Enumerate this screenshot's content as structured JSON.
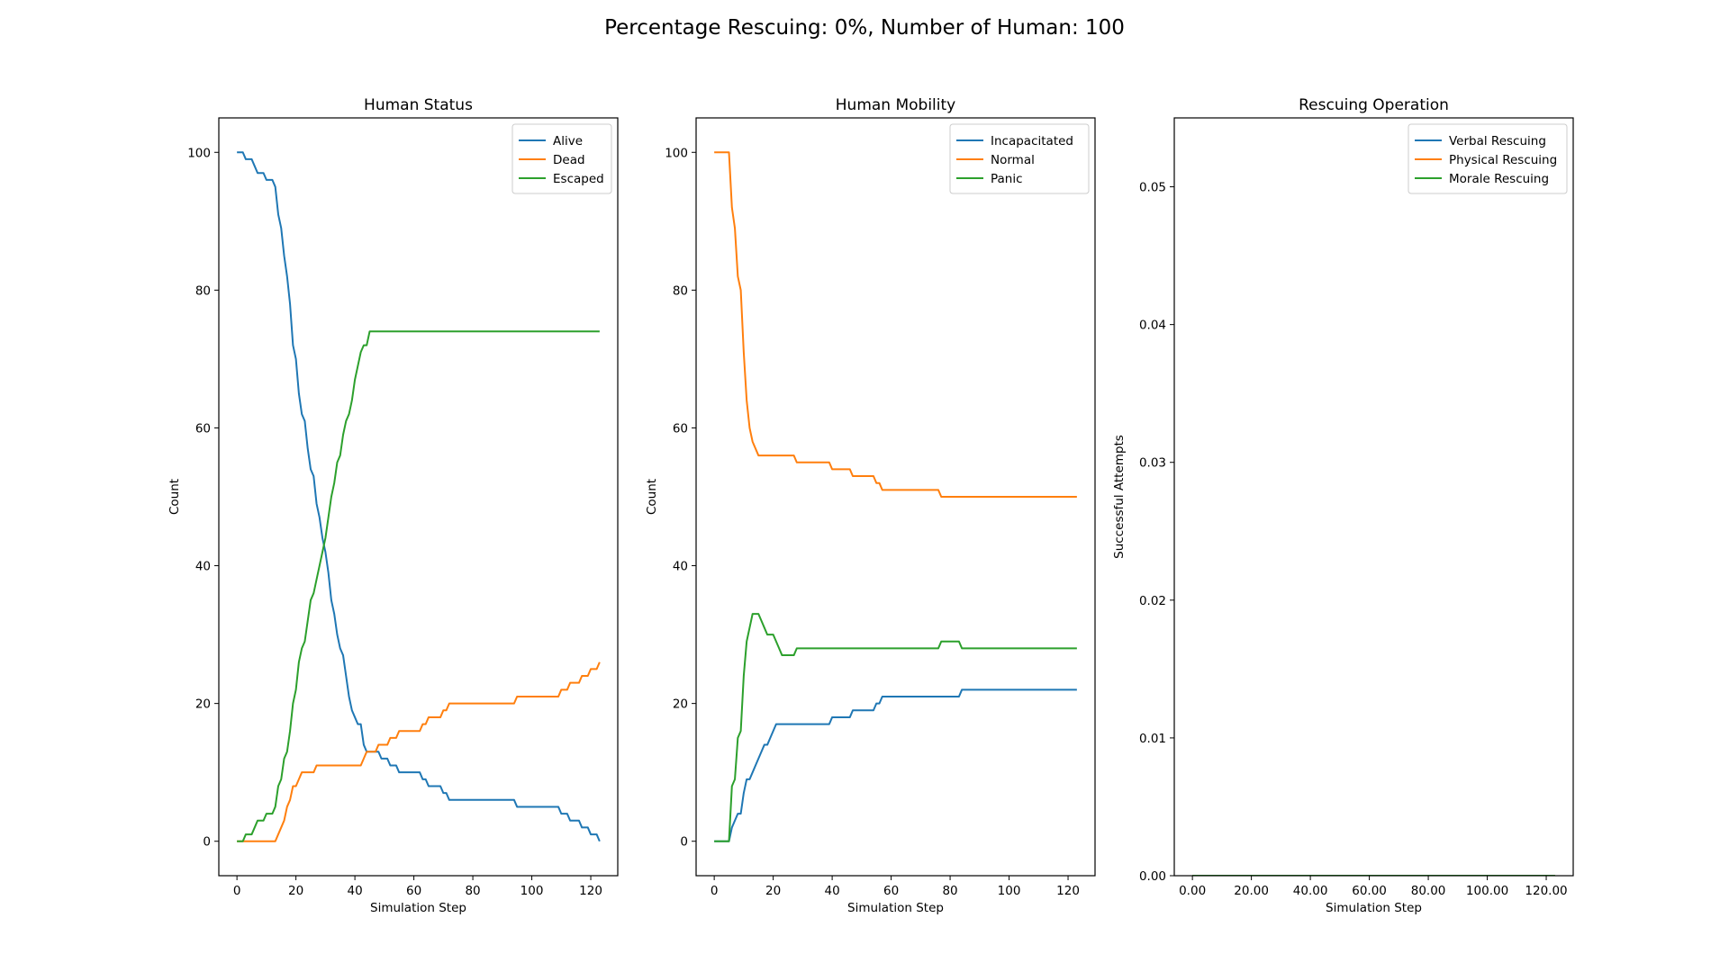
{
  "suptitle": "Percentage Rescuing: 0%, Number of Human: 100",
  "chart_data": [
    {
      "type": "line",
      "title": "Human Status",
      "xlabel": "Simulation Step",
      "ylabel": "Count",
      "xlim": [
        -6.15,
        129.15
      ],
      "ylim": [
        -5,
        105
      ],
      "xticks": [
        0,
        20,
        40,
        60,
        80,
        100,
        120
      ],
      "yticks": [
        0,
        20,
        40,
        60,
        80,
        100
      ],
      "tick_format": "int",
      "legend_position": "upper-right",
      "grid": false,
      "series": [
        {
          "name": "Alive",
          "color": "#1f77b4",
          "points": [
            [
              0,
              100
            ],
            [
              2,
              100
            ],
            [
              3,
              99
            ],
            [
              5,
              99
            ],
            [
              6,
              98
            ],
            [
              7,
              97
            ],
            [
              9,
              97
            ],
            [
              10,
              96
            ],
            [
              12,
              96
            ],
            [
              13,
              95
            ],
            [
              14,
              91
            ],
            [
              15,
              89
            ],
            [
              16,
              85
            ],
            [
              17,
              82
            ],
            [
              18,
              78
            ],
            [
              19,
              72
            ],
            [
              20,
              70
            ],
            [
              21,
              65
            ],
            [
              22,
              62
            ],
            [
              23,
              61
            ],
            [
              24,
              57
            ],
            [
              25,
              54
            ],
            [
              26,
              53
            ],
            [
              27,
              49
            ],
            [
              28,
              47
            ],
            [
              29,
              44
            ],
            [
              30,
              42
            ],
            [
              31,
              39
            ],
            [
              32,
              35
            ],
            [
              33,
              33
            ],
            [
              34,
              30
            ],
            [
              35,
              28
            ],
            [
              36,
              27
            ],
            [
              37,
              24
            ],
            [
              38,
              21
            ],
            [
              39,
              19
            ],
            [
              40,
              18
            ],
            [
              41,
              17
            ],
            [
              42,
              17
            ],
            [
              43,
              14
            ],
            [
              44,
              13
            ],
            [
              48,
              13
            ],
            [
              49,
              12
            ],
            [
              51,
              12
            ],
            [
              52,
              11
            ],
            [
              54,
              11
            ],
            [
              55,
              10
            ],
            [
              62,
              10
            ],
            [
              63,
              9
            ],
            [
              64,
              9
            ],
            [
              65,
              8
            ],
            [
              69,
              8
            ],
            [
              70,
              7
            ],
            [
              71,
              7
            ],
            [
              72,
              6
            ],
            [
              94,
              6
            ],
            [
              95,
              5
            ],
            [
              109,
              5
            ],
            [
              110,
              4
            ],
            [
              112,
              4
            ],
            [
              113,
              3
            ],
            [
              116,
              3
            ],
            [
              117,
              2
            ],
            [
              119,
              2
            ],
            [
              120,
              1
            ],
            [
              122,
              1
            ],
            [
              123,
              0
            ]
          ]
        },
        {
          "name": "Dead",
          "color": "#ff7f0e",
          "points": [
            [
              0,
              0
            ],
            [
              13,
              0
            ],
            [
              14,
              1
            ],
            [
              15,
              2
            ],
            [
              16,
              3
            ],
            [
              17,
              5
            ],
            [
              18,
              6
            ],
            [
              19,
              8
            ],
            [
              20,
              8
            ],
            [
              21,
              9
            ],
            [
              22,
              10
            ],
            [
              26,
              10
            ],
            [
              27,
              11
            ],
            [
              42,
              11
            ],
            [
              43,
              12
            ],
            [
              44,
              13
            ],
            [
              47,
              13
            ],
            [
              48,
              14
            ],
            [
              51,
              14
            ],
            [
              52,
              15
            ],
            [
              54,
              15
            ],
            [
              55,
              16
            ],
            [
              62,
              16
            ],
            [
              63,
              17
            ],
            [
              64,
              17
            ],
            [
              65,
              18
            ],
            [
              69,
              18
            ],
            [
              70,
              19
            ],
            [
              71,
              19
            ],
            [
              72,
              20
            ],
            [
              94,
              20
            ],
            [
              95,
              21
            ],
            [
              109,
              21
            ],
            [
              110,
              22
            ],
            [
              112,
              22
            ],
            [
              113,
              23
            ],
            [
              116,
              23
            ],
            [
              117,
              24
            ],
            [
              119,
              24
            ],
            [
              120,
              25
            ],
            [
              122,
              25
            ],
            [
              123,
              26
            ]
          ]
        },
        {
          "name": "Escaped",
          "color": "#2ca02c",
          "points": [
            [
              0,
              0
            ],
            [
              2,
              0
            ],
            [
              3,
              1
            ],
            [
              5,
              1
            ],
            [
              6,
              2
            ],
            [
              7,
              3
            ],
            [
              9,
              3
            ],
            [
              10,
              4
            ],
            [
              12,
              4
            ],
            [
              13,
              5
            ],
            [
              14,
              8
            ],
            [
              15,
              9
            ],
            [
              16,
              12
            ],
            [
              17,
              13
            ],
            [
              18,
              16
            ],
            [
              19,
              20
            ],
            [
              20,
              22
            ],
            [
              21,
              26
            ],
            [
              22,
              28
            ],
            [
              23,
              29
            ],
            [
              24,
              32
            ],
            [
              25,
              35
            ],
            [
              26,
              36
            ],
            [
              27,
              38
            ],
            [
              28,
              40
            ],
            [
              29,
              42
            ],
            [
              30,
              44
            ],
            [
              31,
              47
            ],
            [
              32,
              50
            ],
            [
              33,
              52
            ],
            [
              34,
              55
            ],
            [
              35,
              56
            ],
            [
              36,
              59
            ],
            [
              37,
              61
            ],
            [
              38,
              62
            ],
            [
              39,
              64
            ],
            [
              40,
              67
            ],
            [
              41,
              69
            ],
            [
              42,
              71
            ],
            [
              43,
              72
            ],
            [
              44,
              72
            ],
            [
              45,
              74
            ],
            [
              123,
              74
            ]
          ]
        }
      ]
    },
    {
      "type": "line",
      "title": "Human Mobility",
      "xlabel": "Simulation Step",
      "ylabel": "Count",
      "xlim": [
        -6.15,
        129.15
      ],
      "ylim": [
        -5,
        105
      ],
      "xticks": [
        0,
        20,
        40,
        60,
        80,
        100,
        120
      ],
      "yticks": [
        0,
        20,
        40,
        60,
        80,
        100
      ],
      "tick_format": "int",
      "legend_position": "upper-right",
      "grid": false,
      "series": [
        {
          "name": "Incapacitated",
          "color": "#1f77b4",
          "points": [
            [
              0,
              0
            ],
            [
              5,
              0
            ],
            [
              6,
              2
            ],
            [
              7,
              3
            ],
            [
              8,
              4
            ],
            [
              9,
              4
            ],
            [
              10,
              7
            ],
            [
              11,
              9
            ],
            [
              12,
              9
            ],
            [
              13,
              10
            ],
            [
              14,
              11
            ],
            [
              15,
              12
            ],
            [
              16,
              13
            ],
            [
              17,
              14
            ],
            [
              18,
              14
            ],
            [
              19,
              15
            ],
            [
              20,
              16
            ],
            [
              21,
              17
            ],
            [
              39,
              17
            ],
            [
              40,
              18
            ],
            [
              46,
              18
            ],
            [
              47,
              19
            ],
            [
              54,
              19
            ],
            [
              55,
              20
            ],
            [
              56,
              20
            ],
            [
              57,
              21
            ],
            [
              83,
              21
            ],
            [
              84,
              22
            ],
            [
              123,
              22
            ]
          ]
        },
        {
          "name": "Normal",
          "color": "#ff7f0e",
          "points": [
            [
              0,
              100
            ],
            [
              5,
              100
            ],
            [
              6,
              92
            ],
            [
              7,
              89
            ],
            [
              8,
              82
            ],
            [
              9,
              80
            ],
            [
              10,
              71
            ],
            [
              11,
              64
            ],
            [
              12,
              60
            ],
            [
              13,
              58
            ],
            [
              14,
              57
            ],
            [
              15,
              56
            ],
            [
              27,
              56
            ],
            [
              28,
              55
            ],
            [
              39,
              55
            ],
            [
              40,
              54
            ],
            [
              46,
              54
            ],
            [
              47,
              53
            ],
            [
              54,
              53
            ],
            [
              55,
              52
            ],
            [
              56,
              52
            ],
            [
              57,
              51
            ],
            [
              76,
              51
            ],
            [
              77,
              50
            ],
            [
              123,
              50
            ]
          ]
        },
        {
          "name": "Panic",
          "color": "#2ca02c",
          "points": [
            [
              0,
              0
            ],
            [
              5,
              0
            ],
            [
              6,
              8
            ],
            [
              7,
              9
            ],
            [
              8,
              15
            ],
            [
              9,
              16
            ],
            [
              10,
              24
            ],
            [
              11,
              29
            ],
            [
              12,
              31
            ],
            [
              13,
              33
            ],
            [
              15,
              33
            ],
            [
              16,
              32
            ],
            [
              17,
              31
            ],
            [
              18,
              30
            ],
            [
              20,
              30
            ],
            [
              21,
              29
            ],
            [
              22,
              28
            ],
            [
              23,
              27
            ],
            [
              27,
              27
            ],
            [
              28,
              28
            ],
            [
              76,
              28
            ],
            [
              77,
              29
            ],
            [
              83,
              29
            ],
            [
              84,
              28
            ],
            [
              123,
              28
            ]
          ]
        }
      ]
    },
    {
      "type": "line",
      "title": "Rescuing Operation",
      "xlabel": "Simulation Step",
      "ylabel": "Successful Attempts",
      "xlim": [
        -6.15,
        129.15
      ],
      "ylim": [
        0,
        0.055
      ],
      "xticks": [
        0,
        20,
        40,
        60,
        80,
        100,
        120
      ],
      "yticks": [
        0.0,
        0.01,
        0.02,
        0.03,
        0.04,
        0.05
      ],
      "tick_format": "2dp",
      "legend_position": "upper-right",
      "grid": false,
      "series": [
        {
          "name": "Verbal Rescuing",
          "color": "#1f77b4",
          "points": [
            [
              0,
              0
            ],
            [
              123,
              0
            ]
          ]
        },
        {
          "name": "Physical Rescuing",
          "color": "#ff7f0e",
          "points": [
            [
              0,
              0
            ],
            [
              123,
              0
            ]
          ]
        },
        {
          "name": "Morale Rescuing",
          "color": "#2ca02c",
          "points": [
            [
              0,
              0
            ],
            [
              123,
              0
            ]
          ]
        }
      ]
    }
  ]
}
